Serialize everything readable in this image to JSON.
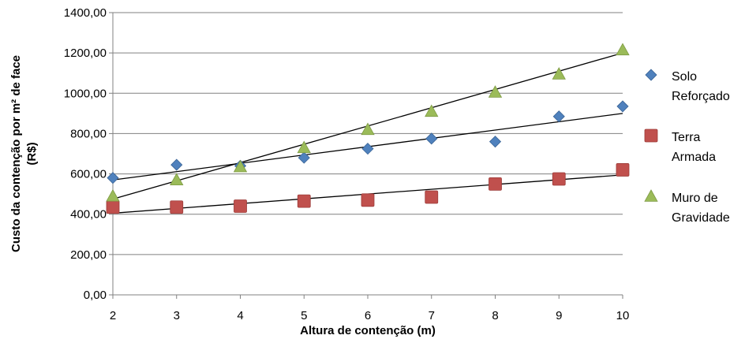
{
  "chart_data": {
    "type": "scatter",
    "xlabel": "Altura de contenção (m)",
    "ylabel_lines": [
      "Custo da contenção por m² de face",
      "(R$)"
    ],
    "x": [
      2,
      3,
      4,
      5,
      6,
      7,
      8,
      9,
      10
    ],
    "xlim": [
      2,
      10
    ],
    "ylim": [
      0,
      1400
    ],
    "yticks": [
      "0,00",
      "200,00",
      "400,00",
      "600,00",
      "800,00",
      "1000,00",
      "1200,00",
      "1400,00"
    ],
    "xticks": [
      "2",
      "3",
      "4",
      "5",
      "6",
      "7",
      "8",
      "9",
      "10"
    ],
    "grid": "horizontal",
    "legend_position": "right",
    "series": [
      {
        "name_lines": [
          "Solo",
          "Reforçado"
        ],
        "marker": "diamond",
        "color": "#4f81bd",
        "values": [
          580,
          645,
          640,
          680,
          725,
          775,
          760,
          885,
          935
        ],
        "trendline": [
          570,
          900
        ]
      },
      {
        "name_lines": [
          "Terra",
          "Armada"
        ],
        "marker": "square",
        "color": "#c0504d",
        "values": [
          435,
          435,
          440,
          465,
          470,
          485,
          550,
          575,
          620
        ],
        "trendline": [
          405,
          595
        ]
      },
      {
        "name_lines": [
          "Muro de",
          "Gravidade"
        ],
        "marker": "triangle",
        "color": "#9bbb59",
        "values": [
          490,
          570,
          635,
          730,
          820,
          910,
          1005,
          1095,
          1215
        ],
        "trendline": [
          475,
          1200
        ]
      }
    ]
  }
}
